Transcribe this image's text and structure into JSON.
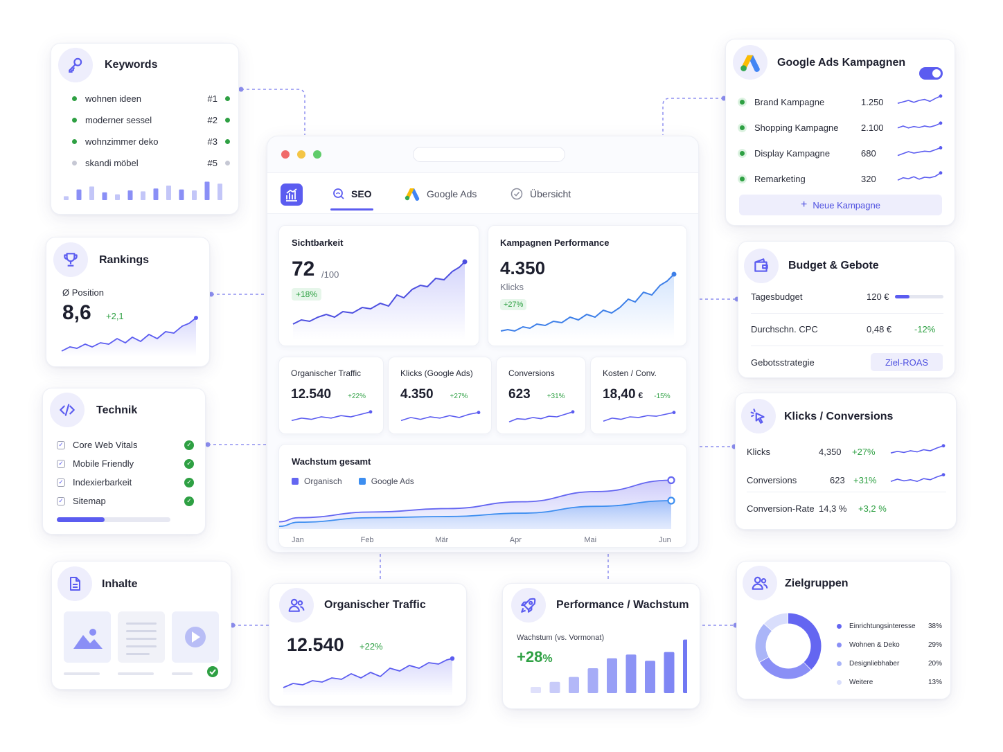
{
  "colors": {
    "accent": "#5b5cf0",
    "green": "#2ea043",
    "grey": "#c6c8d4",
    "light": "#eeeefc"
  },
  "keywords": {
    "title": "Keywords",
    "items": [
      {
        "label": "wohnen ideen",
        "rank": "#1",
        "status": "green"
      },
      {
        "label": "moderner sessel",
        "rank": "#2",
        "status": "green"
      },
      {
        "label": "wohnzimmer deko",
        "rank": "#3",
        "status": "green"
      },
      {
        "label": "skandi möbel",
        "rank": "#5",
        "status": "grey"
      }
    ],
    "bars": [
      0.2,
      0.55,
      0.7,
      0.4,
      0.3,
      0.5,
      0.45,
      0.6,
      0.75,
      0.55,
      0.5,
      0.95,
      0.85
    ]
  },
  "rankings": {
    "title": "Rankings",
    "label": "Ø Position",
    "value": "8,6",
    "delta": "+2,1"
  },
  "technik": {
    "title": "Technik",
    "items": [
      "Core Web Vitals",
      "Mobile Friendly",
      "Indexierbarkeit",
      "Sitemap"
    ],
    "progress": 0.42
  },
  "inhalte": {
    "title": "Inhalte"
  },
  "browser": {
    "tabs": [
      {
        "label": "SEO",
        "icon": "seo-icon"
      },
      {
        "label": "Google Ads",
        "icon": "google-ads-icon"
      },
      {
        "label": "Übersicht",
        "icon": "check-circle-icon"
      }
    ],
    "sichtbarkeit": {
      "title": "Sichtbarkeit",
      "value": "72",
      "unit": "/100",
      "delta": "+18%"
    },
    "kampagnen": {
      "title": "Kampagnen Performance",
      "value": "4.350",
      "unit": "Klicks",
      "delta": "+27%"
    },
    "kpis": [
      {
        "title": "Organischer Traffic",
        "value": "12.540",
        "suffix": "",
        "delta": "+22%"
      },
      {
        "title": "Klicks (Google Ads)",
        "value": "4.350",
        "suffix": "",
        "delta": "+27%"
      },
      {
        "title": "Conversions",
        "value": "623",
        "suffix": "",
        "delta": "+31%"
      },
      {
        "title": "Kosten / Conv.",
        "value": "18,40",
        "suffix": "€",
        "delta": "-15%"
      }
    ],
    "wachstum": {
      "title": "Wachstum gesamt",
      "legend": [
        "Organisch",
        "Google Ads"
      ],
      "months": [
        "Jan",
        "Feb",
        "Mär",
        "Apr",
        "Mai",
        "Jun"
      ]
    }
  },
  "chart_data": {
    "type": "area",
    "title": "Wachstum gesamt",
    "categories": [
      "Jan",
      "Feb",
      "Mär",
      "Apr",
      "Mai",
      "Jun"
    ],
    "series": [
      {
        "name": "Organisch",
        "values": [
          20,
          30,
          36,
          48,
          66,
          86
        ]
      },
      {
        "name": "Google Ads",
        "values": [
          12,
          20,
          22,
          28,
          40,
          50
        ]
      }
    ],
    "ylim": [
      0,
      100
    ]
  },
  "organischer": {
    "title": "Organischer Traffic",
    "value": "12.540",
    "delta": "+22%"
  },
  "performance": {
    "title": "Performance / Wachstum",
    "label": "Wachstum (vs. Vormonat)",
    "value": "+28",
    "unit": "%",
    "bars": [
      0.1,
      0.18,
      0.26,
      0.4,
      0.56,
      0.62,
      0.52,
      0.66,
      0.86
    ]
  },
  "google_ads": {
    "title": "Google Ads Kampagnen",
    "items": [
      {
        "label": "Brand Kampagne",
        "value": "1.250"
      },
      {
        "label": "Shopping Kampagne",
        "value": "2.100"
      },
      {
        "label": "Display Kampagne",
        "value": "680"
      },
      {
        "label": "Remarketing",
        "value": "320"
      }
    ],
    "button": "Neue Kampagne",
    "toggle_on": true
  },
  "budget": {
    "title": "Budget & Gebote",
    "tagesbudget_label": "Tagesbudget",
    "tagesbudget_value": "120 €",
    "tagesbudget_fill": 0.3,
    "cpc_label": "Durchschn. CPC",
    "cpc_value": "0,48 €",
    "cpc_delta": "-12%",
    "strategie_label": "Gebotsstrategie",
    "strategie_value": "Ziel-ROAS"
  },
  "klicks_conv": {
    "title": "Klicks / Conversions",
    "rows": [
      {
        "label": "Klicks",
        "value": "4,350",
        "delta": "+27%"
      },
      {
        "label": "Conversions",
        "value": "623",
        "delta": "+31%"
      }
    ],
    "rate_label": "Conversion-Rate",
    "rate_value": "14,3 %",
    "rate_delta": "+3,2 %"
  },
  "zielgruppen": {
    "title": "Zielgruppen",
    "segments": [
      {
        "label": "Einrichtungsinteresse",
        "value": "38%",
        "share": 38,
        "color": "#6466f1"
      },
      {
        "label": "Wohnen & Deko",
        "value": "29%",
        "share": 29,
        "color": "#8a8ff6"
      },
      {
        "label": "Designliebhaber",
        "value": "20%",
        "share": 20,
        "color": "#aab5f8"
      },
      {
        "label": "Weitere",
        "value": "13%",
        "share": 13,
        "color": "#d9defc"
      }
    ]
  }
}
